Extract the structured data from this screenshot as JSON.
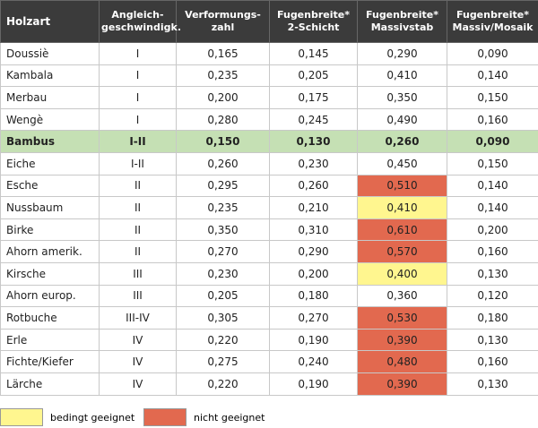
{
  "table": {
    "header": [
      "Holzart",
      "Angleich-\ngeschwindigk.",
      "Verformungs-\nzahl",
      "Fugenbreite*\n2-Schicht",
      "Fugenbreite*\nMassivstab",
      "Fugenbreite*\nMassiv/Mosaik"
    ],
    "rows": [
      [
        "Doussiè",
        "I",
        "0,165",
        "0,145",
        "0,290",
        "0,090"
      ],
      [
        "Kambala",
        "I",
        "0,235",
        "0,205",
        "0,410",
        "0,140"
      ],
      [
        "Merbau",
        "I",
        "0,200",
        "0,175",
        "0,350",
        "0,150"
      ],
      [
        "Wengè",
        "I",
        "0,280",
        "0,245",
        "0,490",
        "0,160"
      ],
      [
        "Bambus",
        "I-II",
        "0,150",
        "0,130",
        "0,260",
        "0,090"
      ],
      [
        "Eiche",
        "I-II",
        "0,260",
        "0,230",
        "0,450",
        "0,150"
      ],
      [
        "Esche",
        "II",
        "0,295",
        "0,260",
        "0,510",
        "0,140"
      ],
      [
        "Nussbaum",
        "II",
        "0,235",
        "0,210",
        "0,410",
        "0,140"
      ],
      [
        "Birke",
        "II",
        "0,350",
        "0,310",
        "0,610",
        "0,200"
      ],
      [
        "Ahorn amerik.",
        "II",
        "0,270",
        "0,290",
        "0,570",
        "0,160"
      ],
      [
        "Kirsche",
        "III",
        "0,230",
        "0,200",
        "0,400",
        "0,130"
      ],
      [
        "Ahorn europ.",
        "III",
        "0,205",
        "0,180",
        "0,360",
        "0,120"
      ],
      [
        "Rotbuche",
        "III-IV",
        "0,305",
        "0,270",
        "0,530",
        "0,180"
      ],
      [
        "Erle",
        "IV",
        "0,220",
        "0,190",
        "0,390",
        "0,130"
      ],
      [
        "Fichte/Kiefer",
        "IV",
        "0,275",
        "0,240",
        "0,480",
        "0,160"
      ],
      [
        "Lärche",
        "IV",
        "0,220",
        "0,190",
        "0,390",
        "0,130"
      ]
    ],
    "highlight_row": 4,
    "highlight_color": "#c5e0b4",
    "massivstab_colors": [
      null,
      null,
      null,
      null,
      null,
      null,
      "#e2694f",
      "#fff68f",
      "#e2694f",
      "#e2694f",
      "#fff68f",
      null,
      "#e2694f",
      "#e2694f",
      "#e2694f",
      "#e2694f"
    ]
  },
  "legend": [
    {
      "label": "bedingt geeignet",
      "color": "#fff68f"
    },
    {
      "label": "nicht geeignet",
      "color": "#e2694f"
    }
  ]
}
